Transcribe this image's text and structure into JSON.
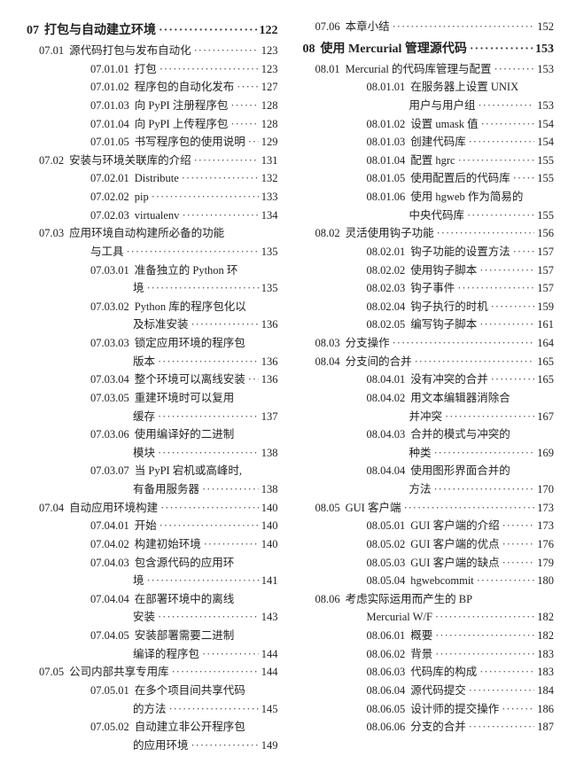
{
  "left": [
    {
      "type": "ch",
      "num": "07",
      "title": "打包与自动建立环境",
      "page": "122"
    },
    {
      "type": "sec",
      "num": "07.01",
      "title": "源代码打包与发布自动化",
      "page": "123"
    },
    {
      "type": "sub",
      "num": "07.01.01",
      "title": "打包",
      "page": "123"
    },
    {
      "type": "sub",
      "num": "07.01.02",
      "title": "程序包的自动化发布",
      "page": "127"
    },
    {
      "type": "sub",
      "num": "07.01.03",
      "title": "向 PyPI 注册程序包",
      "page": "128"
    },
    {
      "type": "sub",
      "num": "07.01.04",
      "title": "向 PyPI 上传程序包",
      "page": "128"
    },
    {
      "type": "sub",
      "num": "07.01.05",
      "title": "书写程序包的使用说明",
      "page": "129"
    },
    {
      "type": "sec",
      "num": "07.02",
      "title": "安装与环境关联库的介绍",
      "page": "131"
    },
    {
      "type": "sub",
      "num": "07.02.01",
      "title": "Distribute",
      "page": "132"
    },
    {
      "type": "sub",
      "num": "07.02.02",
      "title": "pip",
      "page": "133"
    },
    {
      "type": "sub",
      "num": "07.02.03",
      "title": "virtualenv",
      "page": "134"
    },
    {
      "type": "sec",
      "num": "07.03",
      "title": "应用环境自动构建所必备的功能",
      "page": ""
    },
    {
      "type": "secC",
      "title": "与工具",
      "page": "135"
    },
    {
      "type": "sub",
      "num": "07.03.01",
      "title": "准备独立的 Python 环",
      "page": ""
    },
    {
      "type": "cont",
      "title": "境",
      "page": "135"
    },
    {
      "type": "sub",
      "num": "07.03.02",
      "title": "Python 库的程序包化以",
      "page": ""
    },
    {
      "type": "cont",
      "title": "及标准安装",
      "page": "136"
    },
    {
      "type": "sub",
      "num": "07.03.03",
      "title": "锁定应用环境的程序包",
      "page": ""
    },
    {
      "type": "cont",
      "title": "版本",
      "page": "136"
    },
    {
      "type": "sub",
      "num": "07.03.04",
      "title": "整个环境可以离线安装",
      "page": "136"
    },
    {
      "type": "sub",
      "num": "07.03.05",
      "title": "重建环境时可以复用",
      "page": ""
    },
    {
      "type": "cont",
      "title": "缓存",
      "page": "137"
    },
    {
      "type": "sub",
      "num": "07.03.06",
      "title": "使用编译好的二进制",
      "page": ""
    },
    {
      "type": "cont",
      "title": "模块",
      "page": "138"
    },
    {
      "type": "sub",
      "num": "07.03.07",
      "title": "当 PyPI 宕机或高峰时,",
      "page": ""
    },
    {
      "type": "cont",
      "title": "有备用服务器",
      "page": "138"
    },
    {
      "type": "sec",
      "num": "07.04",
      "title": "自动应用环境构建",
      "page": "140"
    },
    {
      "type": "sub",
      "num": "07.04.01",
      "title": "开始",
      "page": "140"
    },
    {
      "type": "sub",
      "num": "07.04.02",
      "title": "构建初始环境",
      "page": "140"
    },
    {
      "type": "sub",
      "num": "07.04.03",
      "title": "包含源代码的应用环",
      "page": ""
    },
    {
      "type": "cont",
      "title": "境",
      "page": "141"
    },
    {
      "type": "sub",
      "num": "07.04.04",
      "title": "在部署环境中的离线",
      "page": ""
    },
    {
      "type": "cont",
      "title": "安装",
      "page": "143"
    },
    {
      "type": "sub",
      "num": "07.04.05",
      "title": "安装部署需要二进制",
      "page": ""
    },
    {
      "type": "cont",
      "title": "编译的程序包",
      "page": "144"
    },
    {
      "type": "sec",
      "num": "07.05",
      "title": "公司内部共享专用库",
      "page": "144"
    },
    {
      "type": "sub",
      "num": "07.05.01",
      "title": "在多个项目间共享代码",
      "page": ""
    },
    {
      "type": "cont",
      "title": "的方法",
      "page": "145"
    },
    {
      "type": "sub",
      "num": "07.05.02",
      "title": "自动建立非公开程序包",
      "page": ""
    },
    {
      "type": "cont",
      "title": "的应用环境",
      "page": "149"
    }
  ],
  "right": [
    {
      "type": "sec",
      "num": "07.06",
      "title": "本章小结",
      "page": "152"
    },
    {
      "type": "ch",
      "num": "08",
      "title": "使用 Mercurial 管理源代码",
      "page": "153"
    },
    {
      "type": "sec",
      "num": "08.01",
      "title": "Mercurial 的代码库管理与配置",
      "page": "153"
    },
    {
      "type": "sub",
      "num": "08.01.01",
      "title": "在服务器上设置 UNIX",
      "page": ""
    },
    {
      "type": "cont",
      "title": "用户与用户组",
      "page": "153"
    },
    {
      "type": "sub",
      "num": "08.01.02",
      "title": "设置 umask 值",
      "page": "154"
    },
    {
      "type": "sub",
      "num": "08.01.03",
      "title": "创建代码库",
      "page": "154"
    },
    {
      "type": "sub",
      "num": "08.01.04",
      "title": "配置 hgrc",
      "page": "155"
    },
    {
      "type": "sub",
      "num": "08.01.05",
      "title": "使用配置后的代码库",
      "page": "155"
    },
    {
      "type": "sub",
      "num": "08.01.06",
      "title": "使用 hgweb 作为简易的",
      "page": ""
    },
    {
      "type": "cont",
      "title": "中央代码库",
      "page": "155"
    },
    {
      "type": "sec",
      "num": "08.02",
      "title": "灵活使用钩子功能",
      "page": "156"
    },
    {
      "type": "sub",
      "num": "08.02.01",
      "title": "钩子功能的设置方法",
      "page": "157"
    },
    {
      "type": "sub",
      "num": "08.02.02",
      "title": "使用钩子脚本",
      "page": "157"
    },
    {
      "type": "sub",
      "num": "08.02.03",
      "title": "钩子事件",
      "page": "157"
    },
    {
      "type": "sub",
      "num": "08.02.04",
      "title": "钩子执行的时机",
      "page": "159"
    },
    {
      "type": "sub",
      "num": "08.02.05",
      "title": "编写钩子脚本",
      "page": "161"
    },
    {
      "type": "sec",
      "num": "08.03",
      "title": "分支操作",
      "page": "164"
    },
    {
      "type": "sec",
      "num": "08.04",
      "title": "分支间的合并",
      "page": "165"
    },
    {
      "type": "sub",
      "num": "08.04.01",
      "title": "没有冲突的合并",
      "page": "165"
    },
    {
      "type": "sub",
      "num": "08.04.02",
      "title": "用文本编辑器消除合",
      "page": ""
    },
    {
      "type": "cont",
      "title": "并冲突",
      "page": "167"
    },
    {
      "type": "sub",
      "num": "08.04.03",
      "title": "合并的模式与冲突的",
      "page": ""
    },
    {
      "type": "cont",
      "title": "种类",
      "page": "169"
    },
    {
      "type": "sub",
      "num": "08.04.04",
      "title": "使用图形界面合并的",
      "page": ""
    },
    {
      "type": "cont",
      "title": "方法",
      "page": "170"
    },
    {
      "type": "sec",
      "num": "08.05",
      "title": "GUI 客户端",
      "page": "173"
    },
    {
      "type": "sub",
      "num": "08.05.01",
      "title": "GUI 客户端的介绍",
      "page": "173"
    },
    {
      "type": "sub",
      "num": "08.05.02",
      "title": "GUI 客户端的优点",
      "page": "176"
    },
    {
      "type": "sub",
      "num": "08.05.03",
      "title": "GUI 客户端的缺点",
      "page": "179"
    },
    {
      "type": "sub",
      "num": "08.05.04",
      "title": "hgwebcommit",
      "page": "180"
    },
    {
      "type": "sec",
      "num": "08.06",
      "title": "考虑实际运用而产生的 BP",
      "page": ""
    },
    {
      "type": "secC",
      "title": "Mercurial W/F",
      "page": "182"
    },
    {
      "type": "sub",
      "num": "08.06.01",
      "title": "概要",
      "page": "182"
    },
    {
      "type": "sub",
      "num": "08.06.02",
      "title": "背景",
      "page": "183"
    },
    {
      "type": "sub",
      "num": "08.06.03",
      "title": "代码库的构成",
      "page": "183"
    },
    {
      "type": "sub",
      "num": "08.06.04",
      "title": "源代码提交",
      "page": "184"
    },
    {
      "type": "sub",
      "num": "08.06.05",
      "title": "设计师的提交操作",
      "page": "186"
    },
    {
      "type": "sub",
      "num": "08.06.06",
      "title": "分支的合并",
      "page": "187"
    }
  ]
}
